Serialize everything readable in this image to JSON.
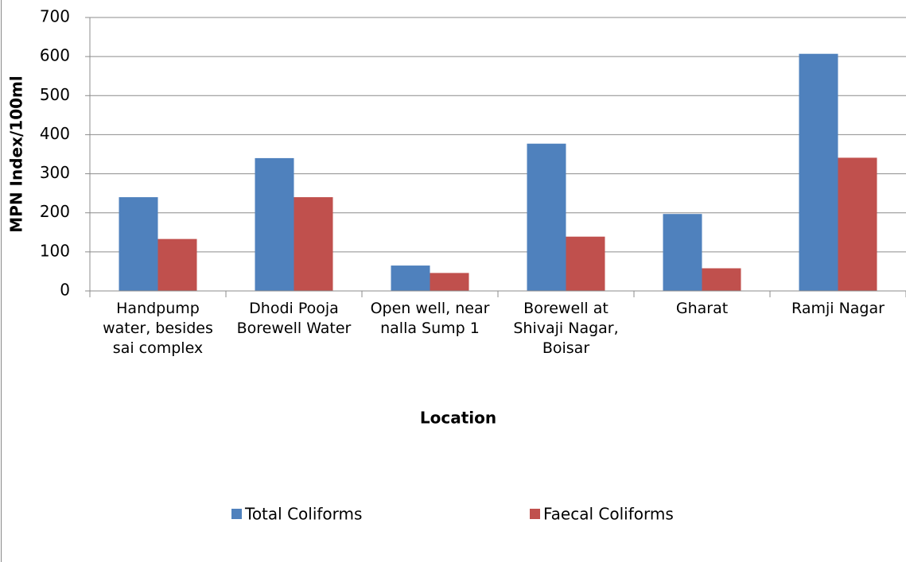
{
  "chart_data": {
    "type": "bar",
    "categories": [
      "Handpump water, besides sai complex",
      "Dhodi Pooja Borewell Water",
      "Open well, near nalla Sump 1",
      "Borewell at Shivaji Nagar, Boisar",
      "Gharat",
      "Ramji Nagar"
    ],
    "series": [
      {
        "name": "Total Coliforms",
        "color": "#4f81bd",
        "values": [
          240,
          340,
          65,
          377,
          197,
          607
        ]
      },
      {
        "name": "Faecal Coliforms",
        "color": "#c0504d",
        "values": [
          133,
          240,
          46,
          139,
          58,
          341
        ]
      }
    ],
    "xlabel": "Location",
    "ylabel": "MPN Index/100ml",
    "ylim": [
      0,
      700
    ],
    "yticks": [
      0,
      100,
      200,
      300,
      400,
      500,
      600,
      700
    ],
    "grid": true,
    "legend": "bottom"
  }
}
